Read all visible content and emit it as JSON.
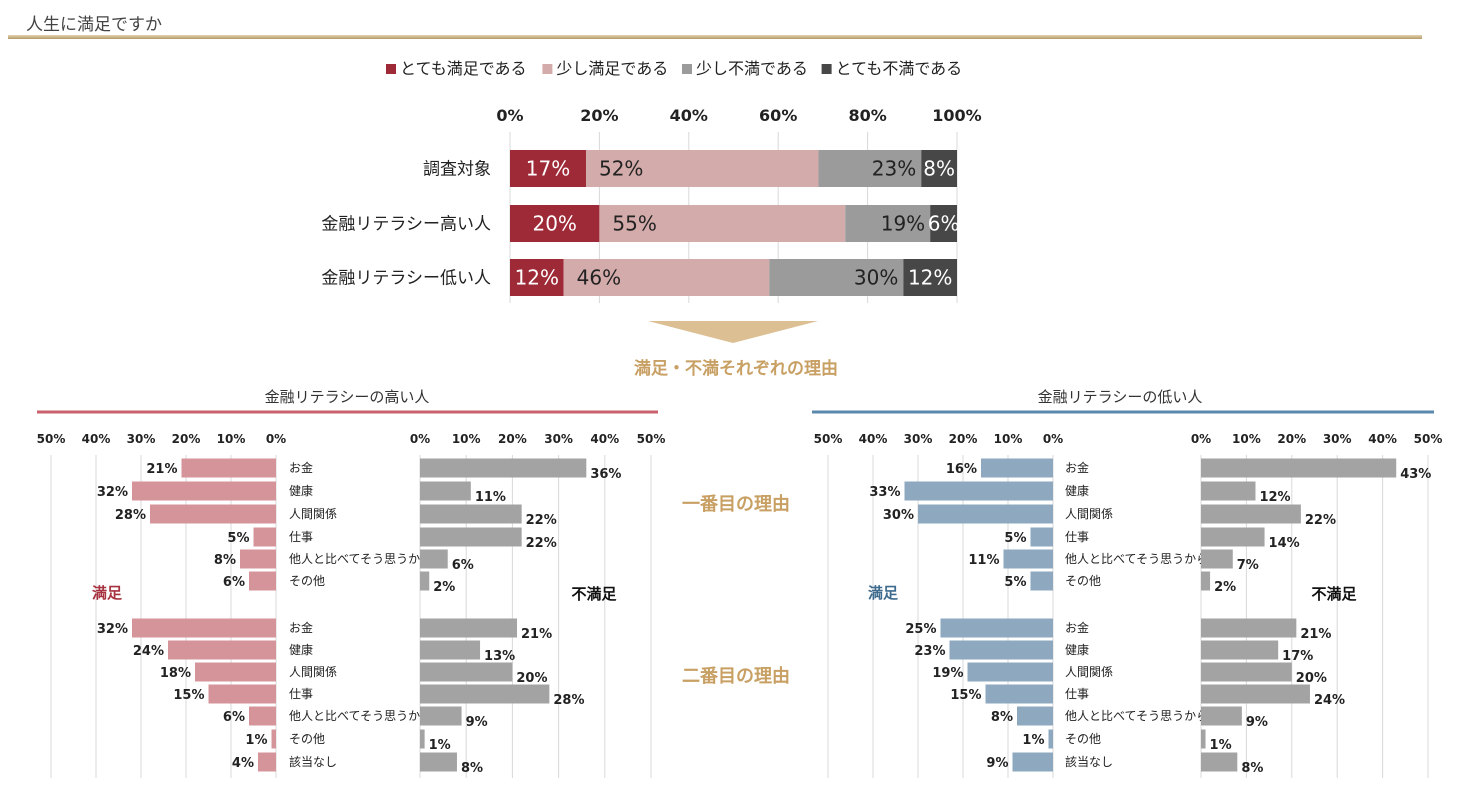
{
  "page_title": "人生に満足ですか",
  "colors": {
    "very_satisfied": "#9e2a37",
    "somewhat_satisfied": "#d4abab",
    "somewhat_unsatisfied": "#9b9b9b",
    "very_unsatisfied": "#474747",
    "high_satisfied_bar": "#d4949a",
    "low_satisfied_bar": "#8ea9bf",
    "unsatisfied_bar": "#a3a3a3",
    "high_rule": "#c9606b",
    "low_rule": "#5a89ae",
    "gold": "#c8a064",
    "satisfied_label_high": "#a8323f",
    "satisfied_label_low": "#3f6c8e"
  },
  "arrow_label": "満足・不満それぞれの理由",
  "first_reason_label": "一番目の理由",
  "second_reason_label": "二番目の理由",
  "panels": [
    {
      "title": "金融リテラシーの高い人",
      "satisfied_label": "満足",
      "unsatisfied_label": "不満足"
    },
    {
      "title": "金融リテラシーの低い人",
      "satisfied_label": "満足",
      "unsatisfied_label": "不満足"
    }
  ],
  "chart_data": [
    {
      "type": "bar",
      "orientation": "horizontal",
      "stacked": true,
      "categories": [
        "調査対象",
        "金融リテラシー高い人",
        "金融リテラシー低い人"
      ],
      "series": [
        {
          "name": "とても満足である",
          "values": [
            17,
            20,
            12
          ],
          "labels": [
            "17%",
            "20%",
            "12%"
          ]
        },
        {
          "name": "少し満足である",
          "values": [
            52,
            55,
            46
          ],
          "labels": [
            "52%",
            "55%",
            "46%"
          ]
        },
        {
          "name": "少し不満である",
          "values": [
            23,
            19,
            30
          ],
          "labels": [
            "23%",
            "19%",
            "30%"
          ]
        },
        {
          "name": "とても不満である",
          "values": [
            8,
            6,
            12
          ],
          "labels": [
            "8%",
            "6%",
            "12%"
          ]
        }
      ],
      "xlim": [
        0,
        100
      ],
      "xticks": [
        "0%",
        "20%",
        "40%",
        "60%",
        "80%",
        "100%"
      ],
      "legend_position": "top"
    },
    {
      "type": "bar",
      "orientation": "horizontal",
      "direction": "left",
      "panel": "金融リテラシーの高い人",
      "group": "満足",
      "xlim": [
        0,
        50
      ],
      "xticks": [
        "50%",
        "40%",
        "30%",
        "20%",
        "10%",
        "0%"
      ],
      "first": {
        "categories": [
          "お金",
          "健康",
          "人間関係",
          "仕事",
          "他人と比べてそう思うから",
          "その他"
        ],
        "values": [
          21,
          32,
          28,
          5,
          8,
          6
        ],
        "labels": [
          "21%",
          "32%",
          "28%",
          "5%",
          "8%",
          "6%"
        ]
      },
      "second": {
        "categories": [
          "お金",
          "健康",
          "人間関係",
          "仕事",
          "他人と比べてそう思うから",
          "その他",
          "該当なし"
        ],
        "values": [
          32,
          24,
          18,
          15,
          6,
          1,
          4
        ],
        "labels": [
          "32%",
          "24%",
          "18%",
          "15%",
          "6%",
          "1%",
          "4%"
        ]
      }
    },
    {
      "type": "bar",
      "orientation": "horizontal",
      "direction": "right",
      "panel": "金融リテラシーの高い人",
      "group": "不満足",
      "xlim": [
        0,
        50
      ],
      "xticks": [
        "0%",
        "10%",
        "20%",
        "30%",
        "40%",
        "50%"
      ],
      "first": {
        "values": [
          36,
          11,
          22,
          22,
          6,
          2
        ],
        "labels": [
          "36%",
          "11%",
          "22%",
          "22%",
          "6%",
          "2%"
        ]
      },
      "second": {
        "values": [
          21,
          13,
          20,
          28,
          9,
          1,
          8
        ],
        "labels": [
          "21%",
          "13%",
          "20%",
          "28%",
          "9%",
          "1%",
          "8%"
        ]
      }
    },
    {
      "type": "bar",
      "orientation": "horizontal",
      "direction": "left",
      "panel": "金融リテラシーの低い人",
      "group": "満足",
      "xlim": [
        0,
        50
      ],
      "xticks": [
        "50%",
        "40%",
        "30%",
        "20%",
        "10%",
        "0%"
      ],
      "first": {
        "categories": [
          "お金",
          "健康",
          "人間関係",
          "仕事",
          "他人と比べてそう思うから",
          "その他"
        ],
        "values": [
          16,
          33,
          30,
          5,
          11,
          5
        ],
        "labels": [
          "16%",
          "33%",
          "30%",
          "5%",
          "11%",
          "5%"
        ]
      },
      "second": {
        "categories": [
          "お金",
          "健康",
          "人間関係",
          "仕事",
          "他人と比べてそう思うから",
          "その他",
          "該当なし"
        ],
        "values": [
          25,
          23,
          19,
          15,
          8,
          1,
          9
        ],
        "labels": [
          "25%",
          "23%",
          "19%",
          "15%",
          "8%",
          "1%",
          "9%"
        ]
      }
    },
    {
      "type": "bar",
      "orientation": "horizontal",
      "direction": "right",
      "panel": "金融リテラシーの低い人",
      "group": "不満足",
      "xlim": [
        0,
        50
      ],
      "xticks": [
        "0%",
        "10%",
        "20%",
        "30%",
        "40%",
        "50%"
      ],
      "first": {
        "values": [
          43,
          12,
          22,
          14,
          7,
          2
        ],
        "labels": [
          "43%",
          "12%",
          "22%",
          "14%",
          "7%",
          "2%"
        ]
      },
      "second": {
        "values": [
          21,
          17,
          20,
          24,
          9,
          1,
          8
        ],
        "labels": [
          "21%",
          "17%",
          "20%",
          "24%",
          "9%",
          "1%",
          "8%"
        ]
      }
    }
  ]
}
